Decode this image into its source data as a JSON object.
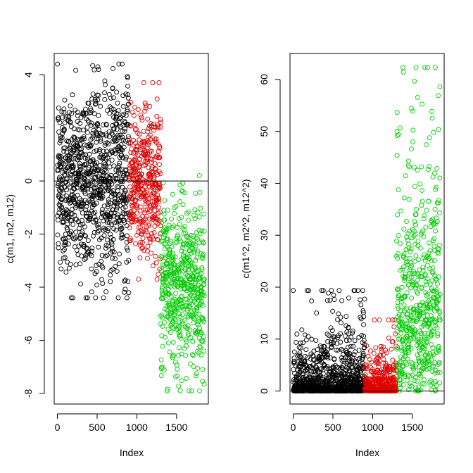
{
  "chart_data": [
    {
      "type": "scatter",
      "xlabel": "Index",
      "ylabel": "c(m1, m2, m12)",
      "xlim": [
        -40,
        1900
      ],
      "ylim": [
        -8.4,
        4.8
      ],
      "xticks": [
        0,
        500,
        1000,
        1500
      ],
      "yticks": [
        -8,
        -6,
        -4,
        -2,
        0,
        2,
        4
      ],
      "hline": 0,
      "marker": "open-circle",
      "grid": false,
      "series": [
        {
          "color": "#000000",
          "x_range": [
            1,
            900
          ],
          "y_center": 0.0,
          "y_spread": 1.8,
          "y_min": -4.4,
          "y_max": 4.4,
          "n": 900
        },
        {
          "color": "#DF0000",
          "x_range": [
            901,
            1300
          ],
          "y_center": 0.0,
          "y_spread": 1.4,
          "y_min": -3.7,
          "y_max": 3.7,
          "n": 400
        },
        {
          "color": "#00CD00",
          "x_range": [
            1301,
            1850
          ],
          "y_center": -4.0,
          "y_spread": 1.6,
          "y_min": -7.9,
          "y_max": 0.2,
          "n": 550
        }
      ]
    },
    {
      "type": "scatter",
      "xlabel": "Index",
      "ylabel": "c(m1^2, m2^2, m12^2)",
      "xlim": [
        -40,
        1900
      ],
      "ylim": [
        -2.5,
        65
      ],
      "xticks": [
        0,
        500,
        1000,
        1500
      ],
      "yticks": [
        0,
        10,
        20,
        30,
        40,
        50,
        60
      ],
      "hline": 0,
      "marker": "open-circle",
      "grid": false,
      "series": [
        {
          "color": "#000000",
          "x_range": [
            1,
            900
          ],
          "y_max": 19.5,
          "n": 900
        },
        {
          "color": "#DF0000",
          "x_range": [
            901,
            1300
          ],
          "y_max": 13.7,
          "n": 400
        },
        {
          "color": "#00CD00",
          "x_range": [
            1301,
            1850
          ],
          "y_max": 62.3,
          "n": 550
        }
      ]
    }
  ]
}
